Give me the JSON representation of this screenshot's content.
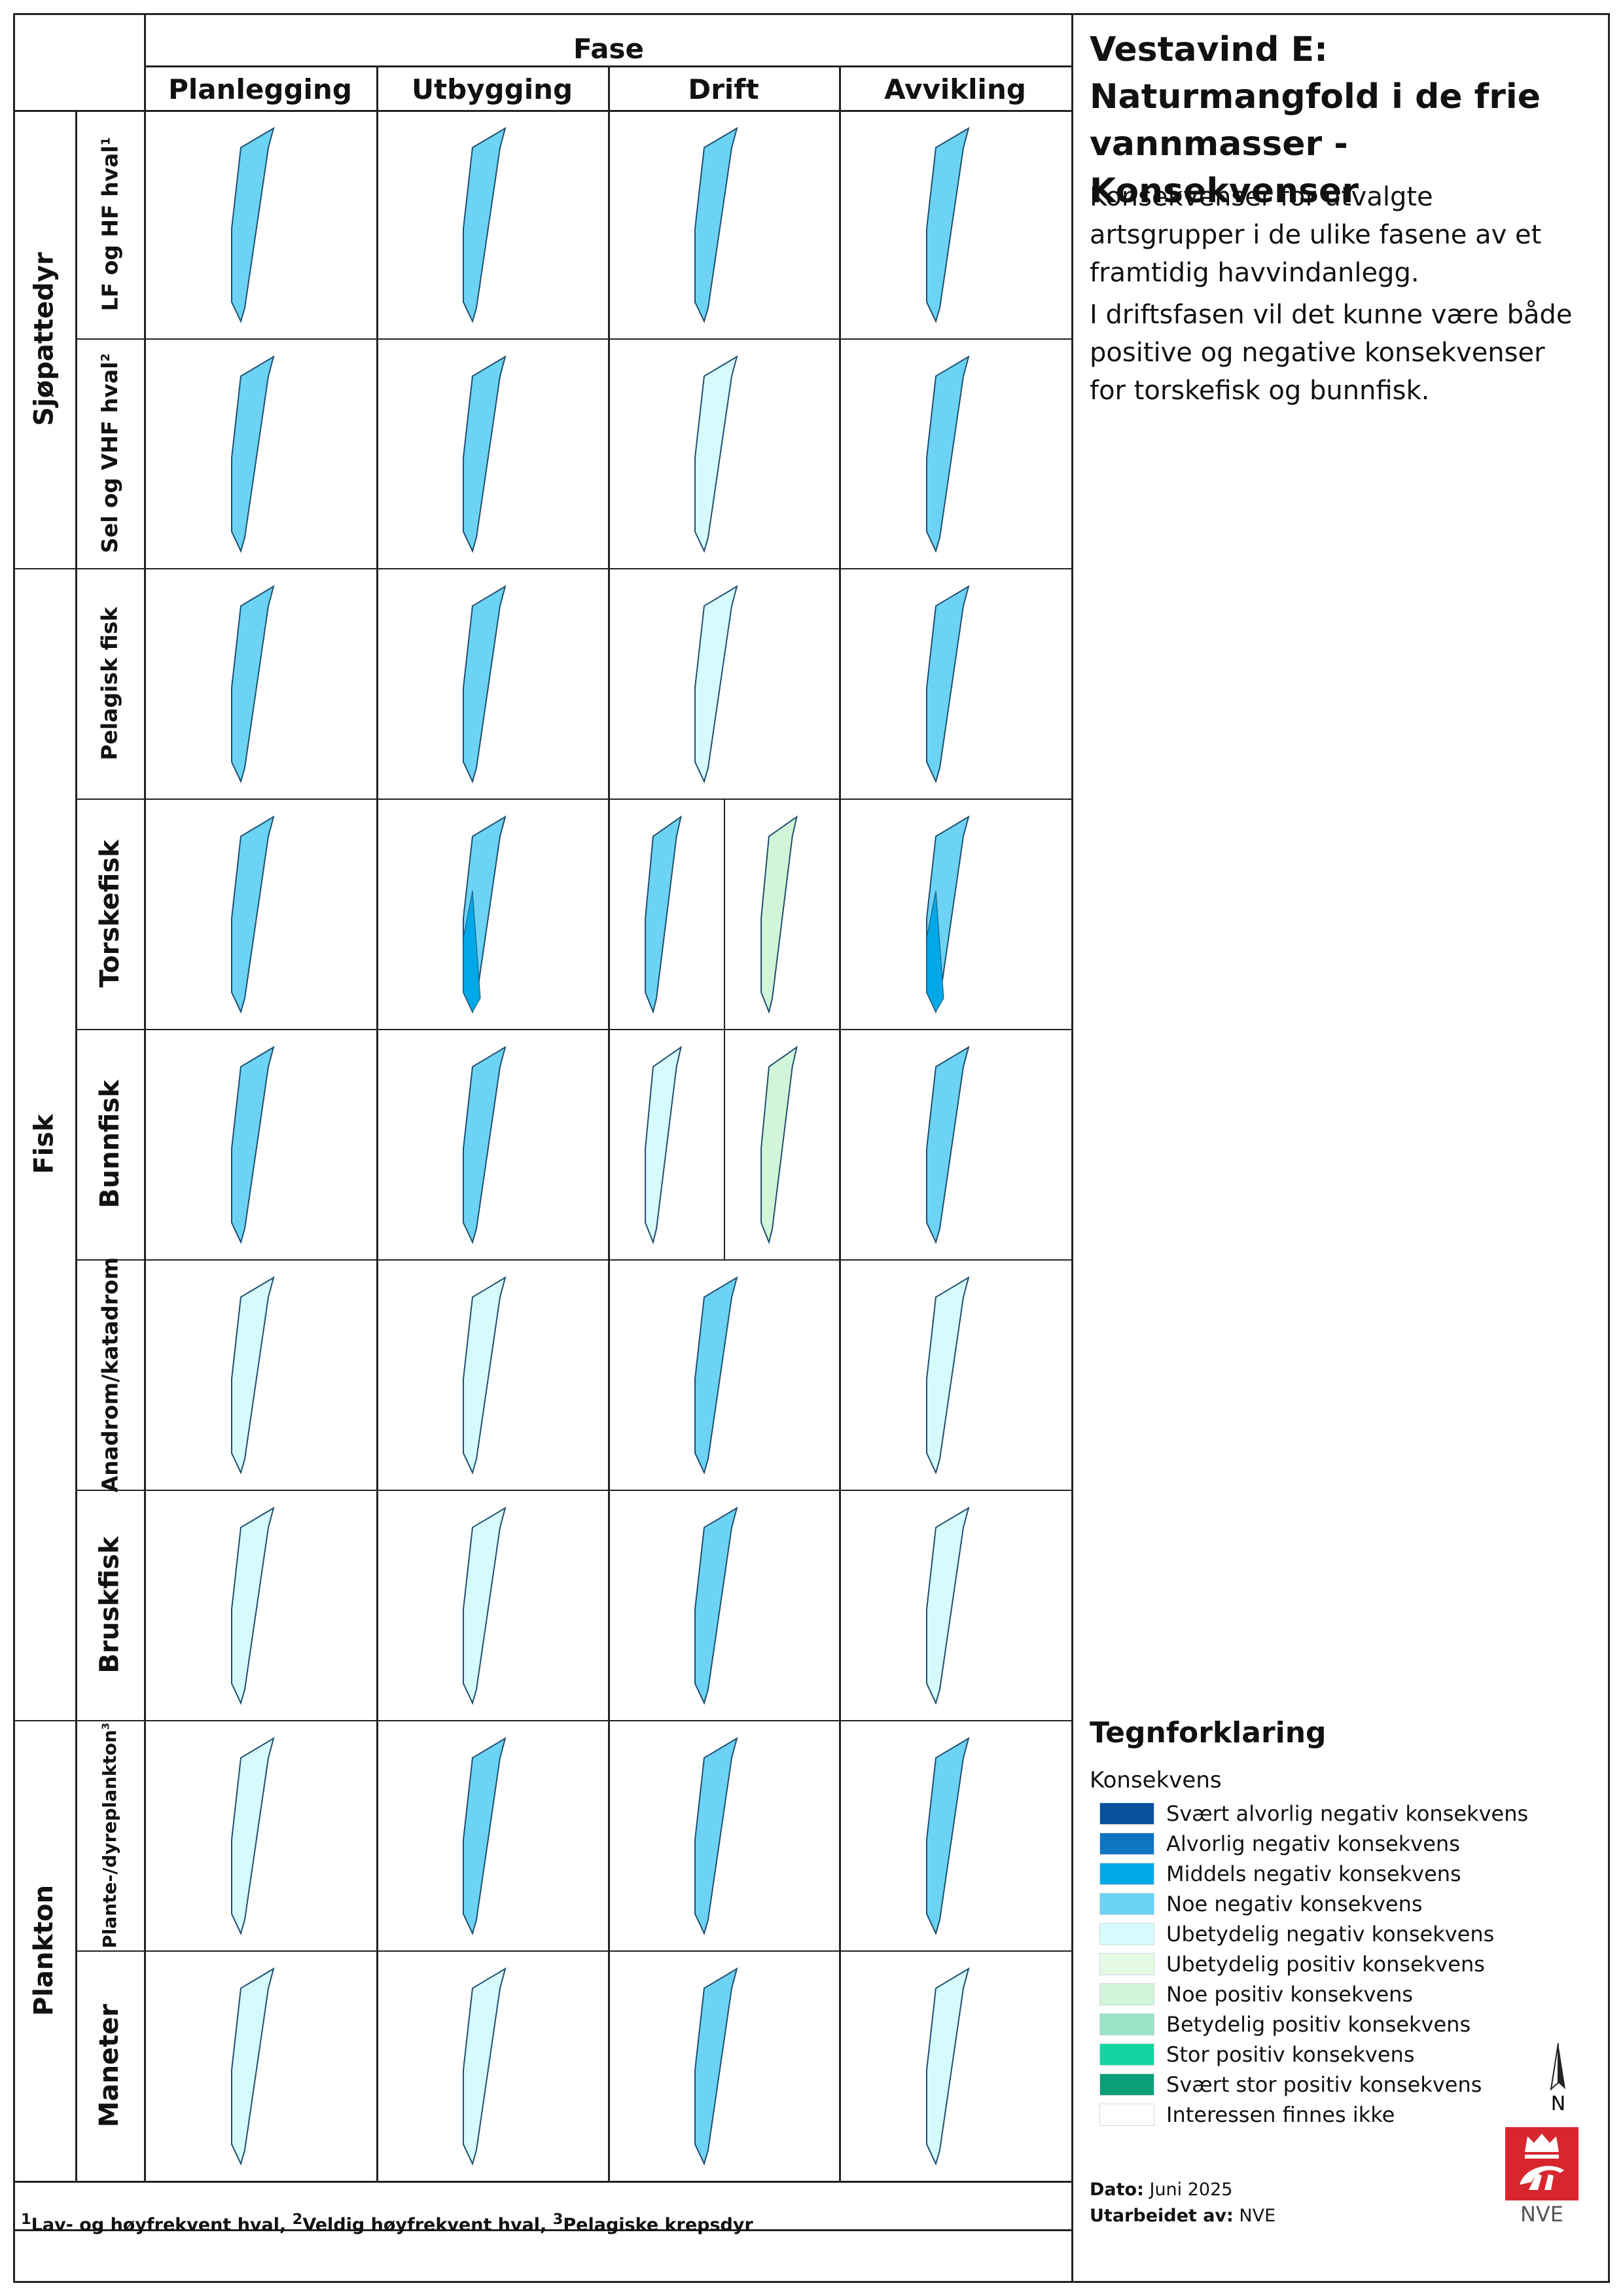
{
  "header": {
    "phase_title": "Fase",
    "phases": [
      "Planlegging",
      "Utbygging",
      "Drift",
      "Avvikling"
    ]
  },
  "groups": [
    {
      "label": "Sjøpattedyr",
      "rows": [
        0,
        1
      ]
    },
    {
      "label": "Fisk",
      "rows": [
        2,
        3,
        4,
        5,
        6
      ]
    },
    {
      "label": "Plankton",
      "rows": [
        7,
        8
      ]
    }
  ],
  "rows": [
    {
      "label": "LF og HF hval",
      "sup": "1",
      "cells": [
        [
          "noe_neg"
        ],
        [
          "noe_neg"
        ],
        [
          "noe_neg"
        ],
        [
          "noe_neg"
        ]
      ]
    },
    {
      "label": "Sel og VHF hval",
      "sup": "2",
      "cells": [
        [
          "noe_neg"
        ],
        [
          "noe_neg"
        ],
        [
          "ubet_neg"
        ],
        [
          "noe_neg"
        ]
      ]
    },
    {
      "label": "Pelagisk fisk",
      "sup": "",
      "cells": [
        [
          "noe_neg"
        ],
        [
          "noe_neg"
        ],
        [
          "ubet_neg"
        ],
        [
          "noe_neg"
        ]
      ]
    },
    {
      "label": "Torskefisk",
      "sup": "",
      "cells": [
        [
          "noe_neg"
        ],
        [
          "noe_neg",
          "middels_neg"
        ],
        [
          "noe_neg",
          "|",
          "noe_pos"
        ],
        [
          "noe_neg",
          "middels_neg"
        ]
      ]
    },
    {
      "label": "Bunnfisk",
      "sup": "",
      "cells": [
        [
          "noe_neg"
        ],
        [
          "noe_neg"
        ],
        [
          "ubet_neg",
          "|",
          "noe_pos"
        ],
        [
          "noe_neg"
        ]
      ]
    },
    {
      "label": "Anadrom/katadrom",
      "sup": "",
      "cells": [
        [
          "ubet_neg"
        ],
        [
          "ubet_neg"
        ],
        [
          "noe_neg"
        ],
        [
          "ubet_neg"
        ]
      ]
    },
    {
      "label": "Bruskfisk",
      "sup": "",
      "cells": [
        [
          "ubet_neg"
        ],
        [
          "ubet_neg"
        ],
        [
          "noe_neg"
        ],
        [
          "ubet_neg"
        ]
      ]
    },
    {
      "label": "Plante-/dyreplankton",
      "sup": "3",
      "cells": [
        [
          "ubet_neg"
        ],
        [
          "noe_neg"
        ],
        [
          "noe_neg"
        ],
        [
          "noe_neg"
        ]
      ]
    },
    {
      "label": "Maneter",
      "sup": "",
      "cells": [
        [
          "ubet_neg"
        ],
        [
          "ubet_neg"
        ],
        [
          "noe_neg"
        ],
        [
          "ubet_neg"
        ]
      ]
    }
  ],
  "title": "Vestavind E:\nNaturmangfold i de frie vannmasser - Konsekvenser",
  "title_lines": [
    "Vestavind E:",
    "Naturmangfold i de frie",
    "vannmasser - Konsekvenser"
  ],
  "description": [
    "Konsekvenser for utvalgte artsgrupper i de ulike fasene av et framtidig havvindanlegg.",
    "I driftsfasen vil det kunne være både positive og negative konsekvenser for torskefisk og bunnfisk."
  ],
  "legend": {
    "title": "Tegnforklaring",
    "subtitle": "Konsekvens",
    "items": [
      {
        "key": "svaert_alv_neg",
        "label": "Svært alvorlig negativ konsekvens",
        "color": "#08519c"
      },
      {
        "key": "alv_neg",
        "label": "Alvorlig negativ konsekvens",
        "color": "#0f75c2"
      },
      {
        "key": "middels_neg",
        "label": "Middels negativ konsekvens",
        "color": "#00a8e8"
      },
      {
        "key": "noe_neg",
        "label": "Noe negativ konsekvens",
        "color": "#6cd3f5"
      },
      {
        "key": "ubet_neg",
        "label": "Ubetydelig negativ konsekvens",
        "color": "#d6fbfd"
      },
      {
        "key": "ubet_pos",
        "label": "Ubetydelig positiv konsekvens",
        "color": "#e4fae2"
      },
      {
        "key": "noe_pos",
        "label": "Noe positiv konsekvens",
        "color": "#d2f5d9"
      },
      {
        "key": "betyd_pos",
        "label": "Betydelig positiv konsekvens",
        "color": "#9be2c6"
      },
      {
        "key": "stor_pos",
        "label": "Stor positiv konsekvens",
        "color": "#12d4a0"
      },
      {
        "key": "svaert_stor_pos",
        "label": "Svært stor positiv konsekvens",
        "color": "#0aa07a"
      },
      {
        "key": "ikke",
        "label": "Interessen finnes ikke",
        "color": "#ffffff"
      }
    ]
  },
  "north_label": "N",
  "logo_text": "NVE",
  "meta": {
    "dato_label": "Dato:",
    "dato": "Juni 2025",
    "utarbeidet_label": "Utarbeidet av:",
    "utarbeidet": "NVE"
  },
  "footnote": {
    "n1": "1",
    "t1": "Lav- og høyfrekvent hval, ",
    "n2": "2",
    "t2": "Veldig høyfrekvent hval, ",
    "n3": "3",
    "t3": "Pelagiske krepsdyr"
  }
}
